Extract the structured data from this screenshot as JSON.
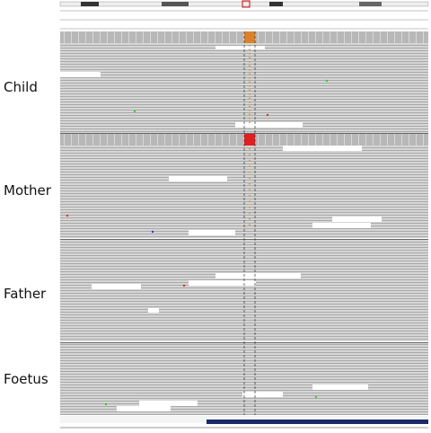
{
  "panels": [
    {
      "label": "Child"
    },
    {
      "label": "Mother"
    },
    {
      "label": "Father"
    },
    {
      "label": "Foetus"
    }
  ]
}
